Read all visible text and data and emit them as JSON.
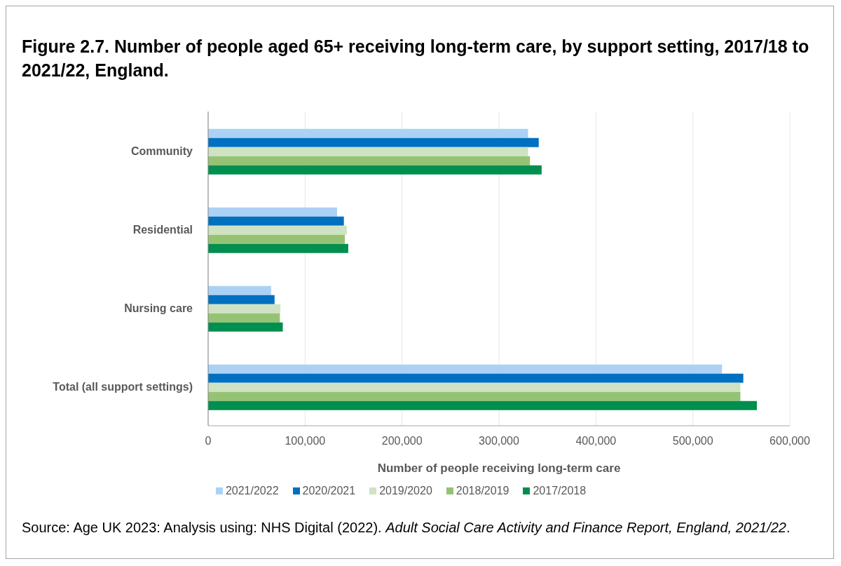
{
  "chart_data": {
    "type": "bar",
    "orientation": "horizontal",
    "title": "Figure 2.7. Number of people aged 65+ receiving long-term care, by support setting, 2017/18 to 2021/22, England.",
    "xlabel": "Number of people receiving long-term care",
    "categories": [
      "Community",
      "Residential",
      "Nursing care",
      "Total (all support settings)"
    ],
    "series": [
      {
        "name": "2021/2022",
        "color": "#abd2f5",
        "values": [
          330000,
          133000,
          65000,
          530000
        ]
      },
      {
        "name": "2020/2021",
        "color": "#0070c0",
        "values": [
          341000,
          140000,
          68500,
          552000
        ]
      },
      {
        "name": "2019/2020",
        "color": "#cfe3c3",
        "values": [
          330000,
          143000,
          74500,
          549000
        ]
      },
      {
        "name": "2018/2019",
        "color": "#95c373",
        "values": [
          332000,
          141000,
          74000,
          549000
        ]
      },
      {
        "name": "2017/2018",
        "color": "#008f4f",
        "values": [
          344000,
          144500,
          77000,
          566000
        ]
      }
    ],
    "xlim": [
      0,
      600000
    ],
    "xticks": [
      {
        "value": 0,
        "label": "0"
      },
      {
        "value": 100000,
        "label": "100,000"
      },
      {
        "value": 200000,
        "label": "200,000"
      },
      {
        "value": 300000,
        "label": "300,000"
      },
      {
        "value": 400000,
        "label": "400,000"
      },
      {
        "value": 500000,
        "label": "500,000"
      },
      {
        "value": 600000,
        "label": "600,000"
      }
    ],
    "grid": "x",
    "legend": "bottom",
    "annotations": [
      "Source: Age UK 2023: Analysis using: NHS Digital (2022). ",
      "Adult Social Care Activity and Finance Report, England, 2021/22",
      "."
    ]
  }
}
